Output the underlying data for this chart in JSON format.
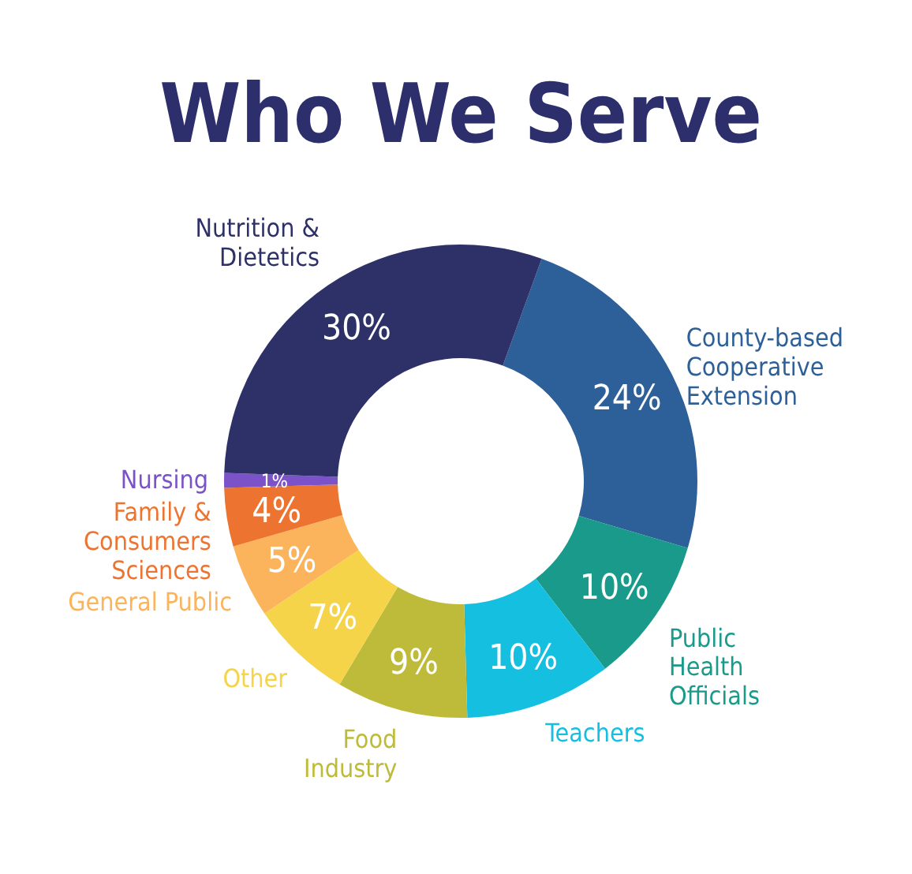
{
  "chart_data": {
    "type": "donut",
    "title": "Who We Serve",
    "categories": [
      "County-based Cooperative Extension",
      "Public Health Officials",
      "Teachers",
      "Food Industry",
      "Other",
      "General Public",
      "Family & Consumers Sciences",
      "Nursing",
      "Nutrition & Dietetics"
    ],
    "values": [
      24,
      10,
      10,
      9,
      7,
      5,
      4,
      1,
      30
    ],
    "value_labels": [
      "24%",
      "10%",
      "10%",
      "9%",
      "7%",
      "5%",
      "4%",
      "1%",
      "30%"
    ],
    "colors": [
      "#2d5f98",
      "#1a9a8a",
      "#14bfe0",
      "#bfbb3a",
      "#f5d44a",
      "#fbb45c",
      "#ed7430",
      "#7b52c7",
      "#2e3168"
    ]
  }
}
